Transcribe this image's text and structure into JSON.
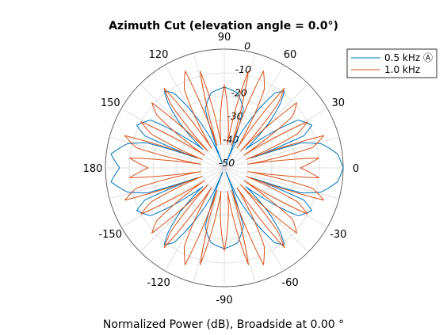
{
  "chart_data": {
    "type": "polar-line",
    "title": "Azimuth Cut (elevation angle = 0.0°)",
    "xlabel": "Normalized Power (dB), Broadside at 0.00 °",
    "r_range": [
      -50,
      0
    ],
    "r_ticks": [
      0,
      -10,
      -20,
      -30,
      -40,
      -50
    ],
    "angle_ticks": [
      {
        "angle": 0,
        "label": "0"
      },
      {
        "angle": 30,
        "label": "30"
      },
      {
        "angle": 60,
        "label": "60"
      },
      {
        "angle": 90,
        "label": "90"
      },
      {
        "angle": 120,
        "label": "120"
      },
      {
        "angle": 150,
        "label": "150"
      },
      {
        "angle": 180,
        "label": "180"
      },
      {
        "angle": -150,
        "label": "-150"
      },
      {
        "angle": -120,
        "label": "-120"
      },
      {
        "angle": -90,
        "label": "-90"
      },
      {
        "angle": -60,
        "label": "-60"
      },
      {
        "angle": -30,
        "label": "-30"
      }
    ],
    "grid": true,
    "legend_position": "top-right",
    "series": [
      {
        "name": "0.5 kHz Ⓐ",
        "color": "#0072bd",
        "angles": [
          0,
          7,
          14,
          18,
          20,
          22,
          26,
          33,
          38,
          41,
          45,
          49,
          52,
          56,
          62,
          66,
          68,
          72,
          80,
          90,
          100,
          108,
          112,
          114,
          118,
          124,
          128,
          131,
          135,
          139,
          142,
          147,
          154,
          158,
          160,
          162,
          166,
          173,
          180
        ],
        "values": [
          0,
          -2,
          -8,
          -16,
          -38,
          -14,
          -9,
          -13,
          -30,
          -38,
          -24,
          -14,
          -9,
          -12,
          -28,
          -38,
          -48,
          -24,
          -18,
          -16,
          -18,
          -24,
          -48,
          -38,
          -28,
          -12,
          -9,
          -14,
          -24,
          -38,
          -30,
          -13,
          -9,
          -14,
          -38,
          -16,
          -8,
          -2,
          -6
        ]
      },
      {
        "name": "1.0 kHz",
        "color": "#d95319",
        "angles": [
          0,
          6,
          9,
          13,
          18,
          21,
          25,
          29,
          33,
          37,
          42,
          46,
          50,
          53,
          57,
          63,
          68,
          72,
          76,
          82,
          90,
          98,
          104,
          108,
          112,
          117,
          123,
          127,
          130,
          134,
          138,
          142,
          147,
          151,
          155,
          159,
          162,
          167,
          171,
          174,
          180
        ],
        "values": [
          -18,
          -10,
          -40,
          -12,
          -6,
          -40,
          -16,
          -10,
          -40,
          -14,
          -9,
          -40,
          -15,
          -8,
          -40,
          -13,
          -6,
          -40,
          -8,
          -40,
          -15,
          -40,
          -8,
          -40,
          -6,
          -13,
          -40,
          -8,
          -15,
          -40,
          -9,
          -14,
          -40,
          -10,
          -16,
          -40,
          -6,
          -12,
          -40,
          -10,
          -18
        ]
      }
    ]
  }
}
